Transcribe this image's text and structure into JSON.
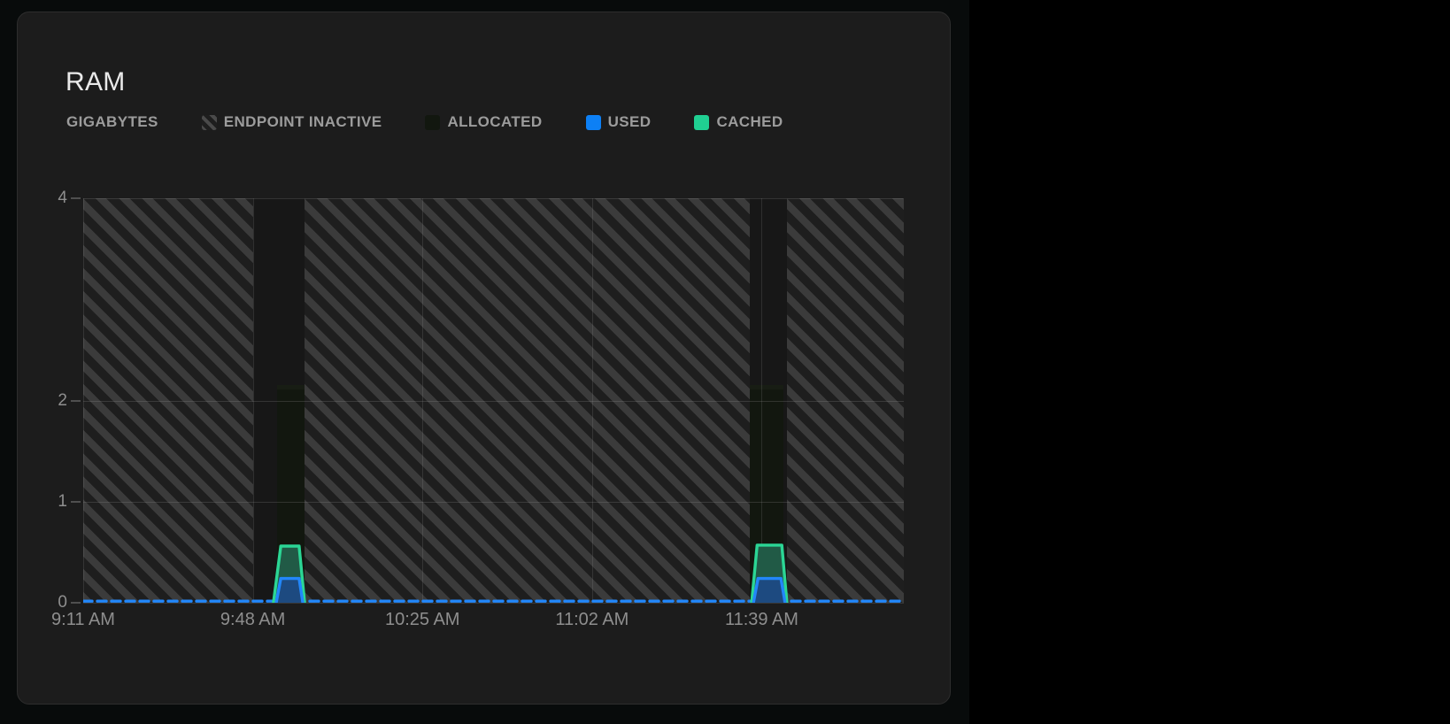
{
  "page": {
    "background": "#000000",
    "content_background": "#080b0b"
  },
  "card": {
    "title": "RAM",
    "background": "#1c1c1c",
    "border_color": "#2d2d2d"
  },
  "legend": {
    "unit_label": "GIGABYTES",
    "items": [
      {
        "id": "endpoint-inactive",
        "label": "ENDPOINT INACTIVE",
        "swatch": "hatch",
        "color": null
      },
      {
        "id": "allocated",
        "label": "ALLOCATED",
        "swatch": "color",
        "color": "#12170f"
      },
      {
        "id": "used",
        "label": "USED",
        "swatch": "color",
        "color": "#0d80f5"
      },
      {
        "id": "cached",
        "label": "CACHED",
        "swatch": "color",
        "color": "#20cf92"
      }
    ]
  },
  "chart_data": {
    "type": "area",
    "title": "RAM",
    "ylabel": "GIGABYTES",
    "ylim": [
      0,
      4
    ],
    "y_ticks": [
      0,
      1,
      2,
      4
    ],
    "x_ticks": [
      "9:11 AM",
      "9:48 AM",
      "10:25 AM",
      "11:02 AM",
      "11:39 AM"
    ],
    "x_tick_interval_minutes": 37,
    "x_total_minutes": 179,
    "grid": true,
    "legend_position": "top",
    "endpoint_inactive_windows_min": [
      [
        0,
        37.1
      ],
      [
        48.3,
        145.4
      ],
      [
        153.5,
        179
      ]
    ],
    "endpoint_active_windows": [
      {
        "start": "9:48 AM",
        "end": "9:59 AM"
      },
      {
        "start": "11:36 AM",
        "end": "11:45 AM"
      }
    ],
    "series": [
      {
        "name": "allocated",
        "fill": "#12170f",
        "windows_min_gb": [
          {
            "t0": 42.3,
            "t1": 48.3,
            "gb": 2.15
          },
          {
            "t0": 145.4,
            "t1": 152.7,
            "gb": 2.15
          }
        ]
      },
      {
        "name": "cached",
        "stroke": "#2bd695",
        "fill": "#215a46",
        "peak_gb": 0.57,
        "spikes_min_gb": [
          [
            [
              41.5,
              0
            ],
            [
              43.1,
              0.56
            ],
            [
              47.1,
              0.56
            ],
            [
              48.3,
              0
            ]
          ],
          [
            [
              145.8,
              0
            ],
            [
              147.0,
              0.57
            ],
            [
              152.4,
              0.57
            ],
            [
              153.5,
              0
            ]
          ]
        ]
      },
      {
        "name": "used",
        "stroke": "#2287fa",
        "fill": "#1d4a80",
        "peak_gb": 0.24,
        "baseline_gb": 0,
        "baseline_style": "dashed",
        "spikes_min_gb": [
          [
            [
              42.1,
              0
            ],
            [
              43.1,
              0.24
            ],
            [
              47.1,
              0.24
            ],
            [
              47.9,
              0
            ]
          ],
          [
            [
              146.2,
              0
            ],
            [
              147.2,
              0.24
            ],
            [
              152.2,
              0.24
            ],
            [
              153.1,
              0
            ]
          ]
        ]
      }
    ]
  }
}
